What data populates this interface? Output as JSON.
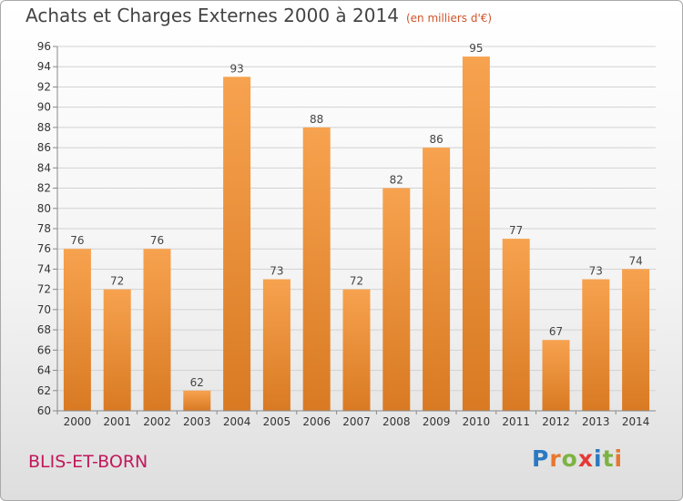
{
  "header": {
    "title": "Achats et Charges Externes 2000 à 2014",
    "subtitle": "(en milliers d'€)"
  },
  "footer": {
    "commune": "BLIS-ET-BORN",
    "logo": "Proxiti"
  },
  "colors": {
    "bar_light": "#f7a24f",
    "bar_dark": "#d97a23",
    "commune": "#c2185b",
    "subtitle": "#d2532a"
  },
  "chart_data": {
    "type": "bar",
    "title": "Achats et Charges Externes 2000 à 2014",
    "subtitle": "(en milliers d'€)",
    "categories": [
      "2000",
      "2001",
      "2002",
      "2003",
      "2004",
      "2005",
      "2006",
      "2007",
      "2008",
      "2009",
      "2010",
      "2011",
      "2012",
      "2013",
      "2014"
    ],
    "values": [
      76,
      72,
      76,
      62,
      93,
      73,
      88,
      72,
      82,
      86,
      95,
      77,
      67,
      73,
      74
    ],
    "ylim": [
      60,
      96
    ],
    "ytick_step": 2,
    "grid": true,
    "legend": "none"
  }
}
